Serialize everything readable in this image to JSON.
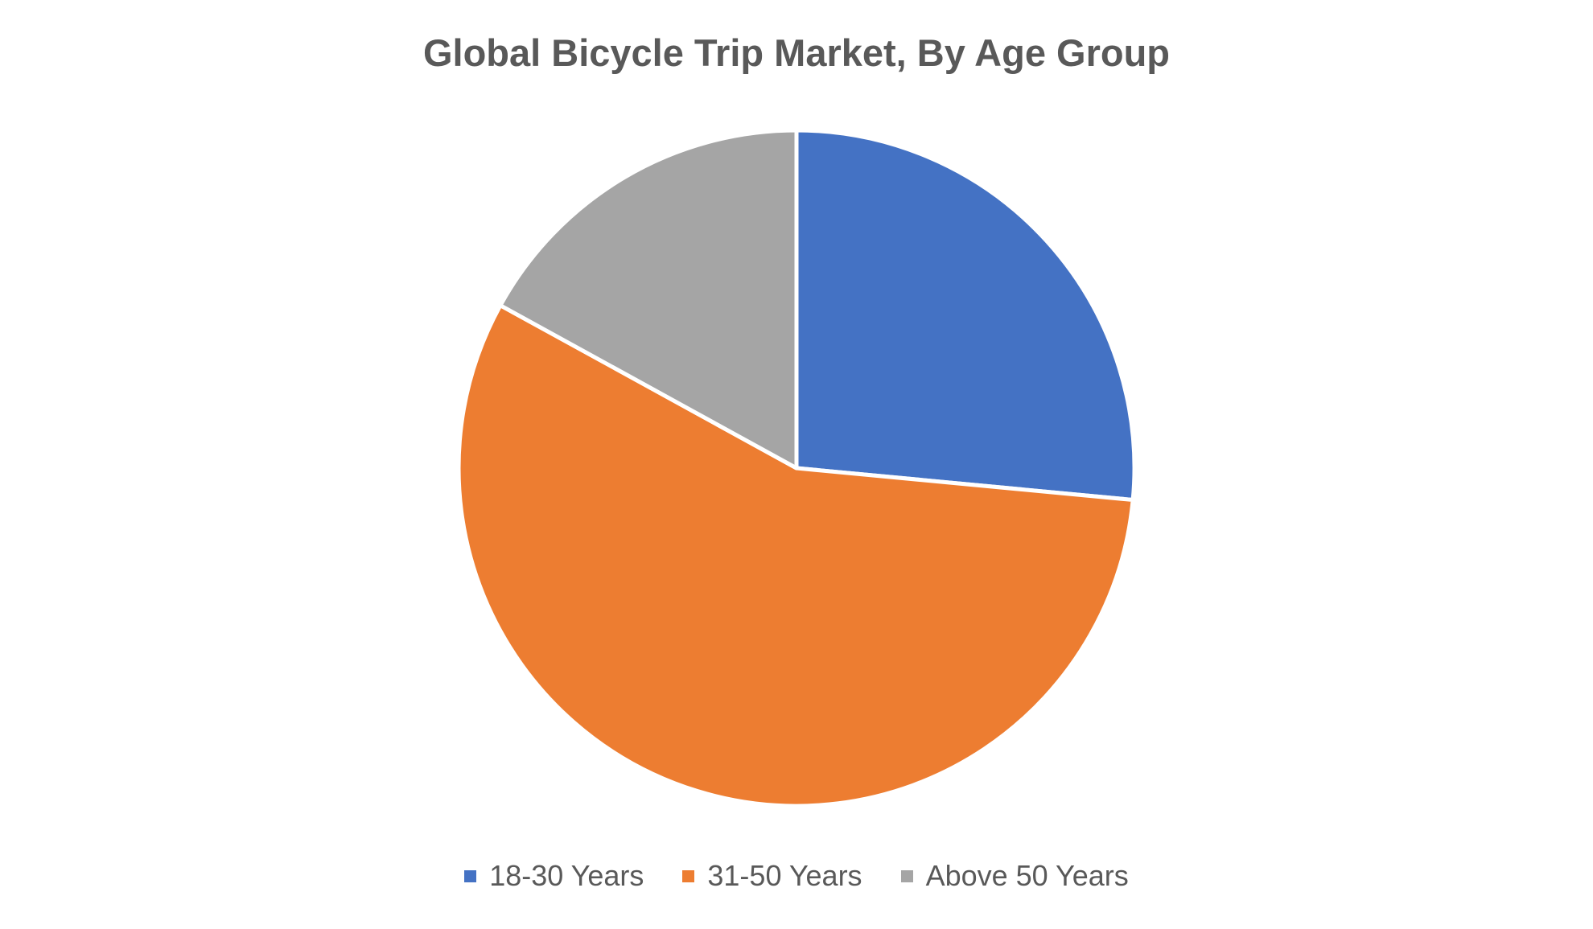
{
  "chart_data": {
    "type": "pie",
    "title": "Global Bicycle Trip Market, By Age Group",
    "categories": [
      "18-30 Years",
      "31-50 Years",
      "Above 50 Years"
    ],
    "values": [
      26.5,
      56.5,
      17.0
    ],
    "colors": [
      "#4472C4",
      "#ED7D31",
      "#A5A5A5"
    ],
    "legend_position": "bottom",
    "start_angle": "top, clockwise"
  }
}
